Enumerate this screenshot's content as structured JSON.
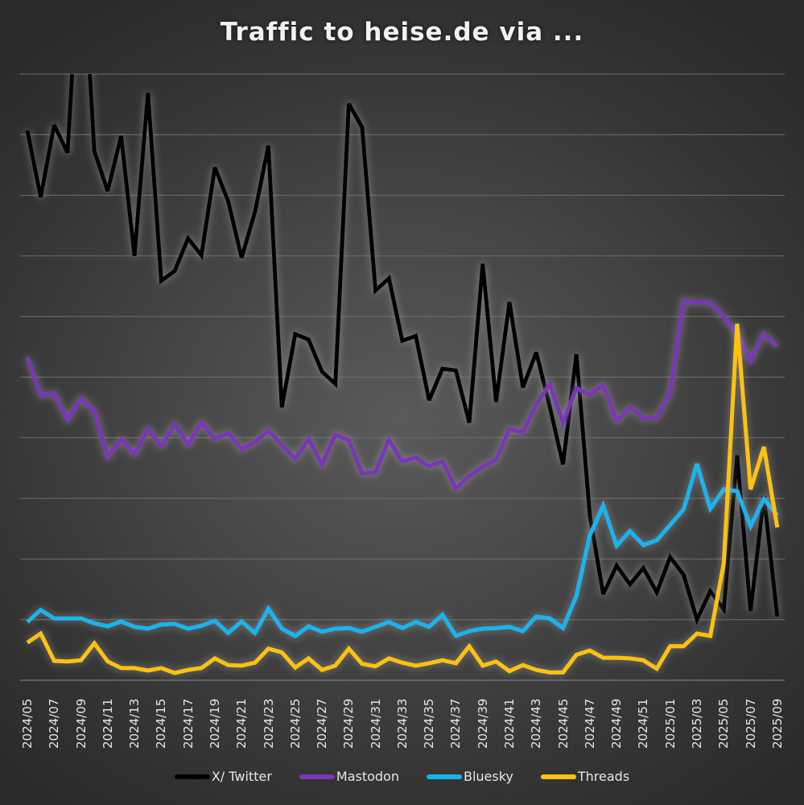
{
  "title": "Traffic to heise.de via ...",
  "colors": {
    "twitter": "#000000",
    "mastodon": "#7a35b8",
    "bluesky": "#13b5f0",
    "threads": "#ffc20e",
    "grid": "#6e6e6e",
    "text": "#e6e6e6"
  },
  "legend": [
    {
      "label": "X/ Twitter",
      "color": "#000000"
    },
    {
      "label": "Mastodon",
      "color": "#7a35b8"
    },
    {
      "label": "Bluesky",
      "color": "#13b5f0"
    },
    {
      "label": "Threads",
      "color": "#ffc20e"
    }
  ],
  "chart_data": {
    "type": "line",
    "title": "Traffic to heise.de via ...",
    "xlabel": "",
    "ylabel": "",
    "ylim": [
      0,
      100
    ],
    "y_axis_labels_shown": false,
    "grid": true,
    "legend_position": "bottom",
    "tick_labels": [
      "2024/05",
      "2024/07",
      "2024/09",
      "2024/11",
      "2024/13",
      "2024/15",
      "2024/17",
      "2024/19",
      "2024/21",
      "2024/23",
      "2024/25",
      "2024/27",
      "2024/29",
      "2024/31",
      "2024/33",
      "2024/35",
      "2024/37",
      "2024/39",
      "2024/41",
      "2024/43",
      "2024/45",
      "2024/47",
      "2024/49",
      "2024/51",
      "2025/01",
      "2025/03",
      "2025/05",
      "2025/07",
      "2025/09"
    ],
    "x": [
      "2024/05",
      "2024/06",
      "2024/07",
      "2024/08",
      "2024/09",
      "2024/10",
      "2024/11",
      "2024/12",
      "2024/13",
      "2024/14",
      "2024/15",
      "2024/16",
      "2024/17",
      "2024/18",
      "2024/19",
      "2024/20",
      "2024/21",
      "2024/22",
      "2024/23",
      "2024/24",
      "2024/25",
      "2024/26",
      "2024/27",
      "2024/28",
      "2024/29",
      "2024/30",
      "2024/31",
      "2024/32",
      "2024/33",
      "2024/34",
      "2024/35",
      "2024/36",
      "2024/37",
      "2024/38",
      "2024/39",
      "2024/40",
      "2024/41",
      "2024/42",
      "2024/43",
      "2024/44",
      "2024/45",
      "2024/46",
      "2024/47",
      "2024/48",
      "2024/49",
      "2024/50",
      "2024/51",
      "2024/52",
      "2025/01",
      "2025/02",
      "2025/03",
      "2025/04",
      "2025/05",
      "2025/06",
      "2025/07",
      "2025/08",
      "2025/09"
    ],
    "series": [
      {
        "name": "X/ Twitter",
        "color": "#000000",
        "values": [
          90.7,
          79.7,
          91.6,
          87.0,
          125,
          87.3,
          80.7,
          89.8,
          70.0,
          96.9,
          65.9,
          67.5,
          72.9,
          70.1,
          84.6,
          79.0,
          69.7,
          77.3,
          88.2,
          45.0,
          57.1,
          56.2,
          50.9,
          48.9,
          95.1,
          91.2,
          64.3,
          66.3,
          56.0,
          56.8,
          46.2,
          51.4,
          51.1,
          42.5,
          68.7,
          45.9,
          62.4,
          48.3,
          54.1,
          45.2,
          35.6,
          53.8,
          27.2,
          14.2,
          18.9,
          15.8,
          18.5,
          14.5,
          20.3,
          17.4,
          10.0,
          14.7,
          11.7,
          37.1,
          11.4,
          30.4,
          10.5
        ]
      },
      {
        "name": "Mastodon",
        "color": "#7a35b8",
        "values": [
          53.3,
          46.9,
          47.3,
          43.0,
          46.5,
          44.4,
          36.9,
          39.7,
          37.3,
          41.4,
          38.6,
          42.2,
          38.9,
          42.5,
          39.8,
          40.8,
          38.1,
          39.3,
          41.2,
          38.8,
          36.5,
          39.8,
          35.6,
          40.5,
          39.6,
          34.1,
          34.3,
          39.7,
          36.1,
          36.7,
          35.3,
          36.1,
          31.6,
          33.7,
          35.2,
          36.4,
          41.4,
          40.9,
          45.4,
          48.9,
          42.5,
          48.2,
          47.1,
          48.7,
          42.8,
          45.0,
          43.2,
          43.4,
          47.4,
          62.7,
          62.3,
          62.3,
          60.0,
          57.1,
          52.7,
          57.2,
          55.1
        ]
      },
      {
        "name": "Bluesky",
        "color": "#13b5f0",
        "values": [
          9.6,
          11.6,
          10.2,
          10.2,
          10.2,
          9.4,
          8.9,
          9.7,
          8.8,
          8.5,
          9.2,
          9.3,
          8.5,
          9.0,
          9.8,
          7.8,
          9.7,
          7.8,
          11.8,
          8.5,
          7.3,
          8.9,
          8.0,
          8.5,
          8.6,
          8.0,
          8.8,
          9.6,
          8.6,
          9.6,
          8.8,
          10.8,
          7.3,
          8.1,
          8.5,
          8.6,
          8.8,
          8.1,
          10.5,
          10.2,
          8.6,
          13.9,
          23.9,
          28.8,
          22.2,
          24.6,
          22.3,
          23.1,
          25.6,
          28.2,
          35.7,
          28.3,
          31.5,
          31.2,
          25.4,
          29.9,
          27.2
        ]
      },
      {
        "name": "Threads",
        "color": "#ffc20e",
        "values": [
          6.2,
          7.7,
          3.2,
          3.1,
          3.3,
          6.1,
          3.1,
          2.0,
          2.0,
          1.6,
          2.0,
          1.2,
          1.7,
          2.0,
          3.6,
          2.5,
          2.4,
          2.9,
          5.2,
          4.6,
          2.1,
          3.6,
          1.7,
          2.4,
          5.2,
          2.7,
          2.3,
          3.6,
          2.9,
          2.4,
          2.8,
          3.3,
          2.8,
          5.6,
          2.4,
          3.1,
          1.5,
          2.5,
          1.7,
          1.3,
          1.3,
          4.2,
          4.9,
          3.7,
          3.7,
          3.6,
          3.3,
          1.9,
          5.6,
          5.6,
          7.7,
          7.3,
          19.3,
          58.8,
          31.5,
          38.5,
          25.2
        ]
      }
    ]
  }
}
